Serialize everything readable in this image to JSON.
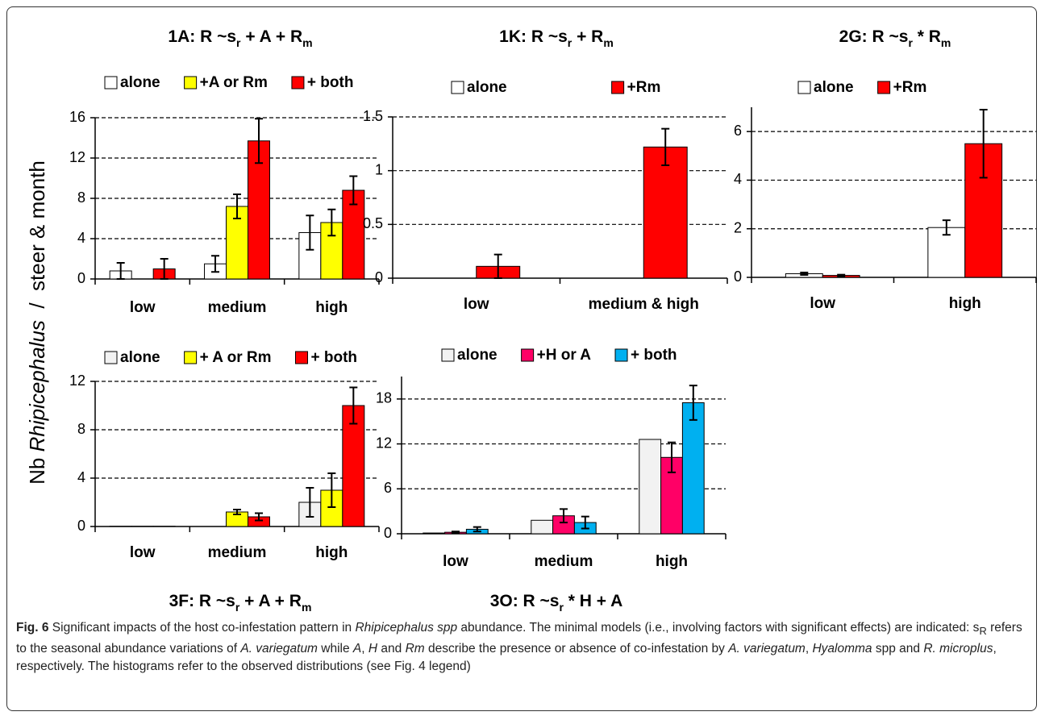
{
  "y_label": [
    "Nb ",
    "Rhipicephalus",
    "  /  steer & month"
  ],
  "chart_data": [
    {
      "type": "bar",
      "title": [
        "1A: R ~s",
        "r",
        " + A + R",
        "m"
      ],
      "title_position": "top",
      "categories": [
        "low",
        "medium",
        "high"
      ],
      "ylim": [
        0,
        16
      ],
      "yticks": [
        0,
        4,
        8,
        12,
        16
      ],
      "grid": true,
      "series": [
        {
          "name": "alone",
          "color": "#ffffff",
          "values": [
            0.8,
            1.5,
            4.6
          ],
          "errors": [
            0.8,
            0.8,
            1.7
          ]
        },
        {
          "name": "+A or Rm",
          "color": "#ffff00",
          "values": [
            null,
            7.2,
            5.6
          ],
          "errors": [
            null,
            1.2,
            1.3
          ]
        },
        {
          "name": "+ both",
          "color": "#ff0000",
          "values": [
            1.0,
            13.7,
            8.8
          ],
          "errors": [
            1.0,
            2.2,
            1.4
          ]
        }
      ]
    },
    {
      "type": "bar",
      "title": [
        "1K: R ~s",
        "r",
        " + R",
        "m"
      ],
      "title_position": "top",
      "categories": [
        "low",
        "medium & high"
      ],
      "ylim": [
        0,
        1.5
      ],
      "yticks": [
        0,
        0.5,
        1,
        1.5
      ],
      "grid": true,
      "series": [
        {
          "name": "alone",
          "color": "#ffffff",
          "values": [
            0,
            0
          ],
          "errors": [
            null,
            null
          ]
        },
        {
          "name": "+Rm",
          "color": "#ff0000",
          "values": [
            0.11,
            1.22
          ],
          "errors": [
            0.11,
            0.17
          ]
        }
      ]
    },
    {
      "type": "bar",
      "title": [
        "2G: R ~s",
        "r",
        " * R",
        "m"
      ],
      "title_position": "top",
      "categories": [
        "low",
        "high"
      ],
      "ylim": [
        0,
        7
      ],
      "yticks": [
        0,
        2,
        4,
        6
      ],
      "grid": true,
      "series": [
        {
          "name": "alone",
          "color": "#ffffff",
          "values": [
            0.15,
            2.05
          ],
          "errors": [
            0.05,
            0.3
          ]
        },
        {
          "name": "+Rm",
          "color": "#ff0000",
          "values": [
            0.08,
            5.5
          ],
          "errors": [
            0.03,
            1.4
          ]
        }
      ]
    },
    {
      "type": "bar",
      "title": [
        "3F: R ~s",
        "r",
        " + A + R",
        "m"
      ],
      "title_position": "bottom",
      "categories": [
        "low",
        "medium",
        "high"
      ],
      "ylim": [
        0,
        12
      ],
      "yticks": [
        0,
        4,
        8,
        12
      ],
      "grid": true,
      "series": [
        {
          "name": "alone",
          "color": "#f2f2f2",
          "values": [
            0.02,
            0,
            2.0
          ],
          "errors": [
            null,
            null,
            1.2
          ]
        },
        {
          "name": "+ A or Rm",
          "color": "#ffff00",
          "values": [
            0.02,
            1.2,
            3.0
          ],
          "errors": [
            null,
            0.2,
            1.4
          ]
        },
        {
          "name": "+ both",
          "color": "#ff0000",
          "values": [
            0.02,
            0.8,
            10.0
          ],
          "errors": [
            null,
            0.3,
            1.5
          ]
        }
      ]
    },
    {
      "type": "bar",
      "title": [
        "3O: R ~s",
        "r",
        " * H + A"
      ],
      "title_position": "bottom",
      "categories": [
        "low",
        "medium",
        "high"
      ],
      "ylim": [
        0,
        21
      ],
      "yticks": [
        0,
        6,
        12,
        18
      ],
      "grid": true,
      "series": [
        {
          "name": "alone",
          "color": "#f2f2f2",
          "values": [
            0.1,
            1.8,
            12.6
          ],
          "errors": [
            null,
            null,
            null
          ]
        },
        {
          "name": "+H or A",
          "color": "#ff0066",
          "values": [
            0.2,
            2.4,
            10.2
          ],
          "errors": [
            0.1,
            0.9,
            2.0
          ]
        },
        {
          "name": "+ both",
          "color": "#00b0f0",
          "values": [
            0.6,
            1.5,
            17.5
          ],
          "errors": [
            0.3,
            0.8,
            2.3
          ]
        }
      ]
    }
  ],
  "caption": {
    "label": "Fig. 6",
    "parts": [
      " Significant impacts of the host co-infestation pattern in ",
      "Rhipicephalus spp",
      " abundance. The minimal models (i.e., involving factors with significant effects) are indicated: s",
      "R",
      " refers to the seasonal abundance variations of ",
      "A. variegatum",
      " while ",
      "A",
      ", ",
      "H",
      " and ",
      "Rm",
      " describe the presence or absence of co-infestation by ",
      "A. variegatum",
      ", ",
      "Hyalomma",
      " spp and ",
      "R. microplus",
      ", respectively. The histograms refer to the observed distributions (see Fig. 4 legend)"
    ]
  }
}
